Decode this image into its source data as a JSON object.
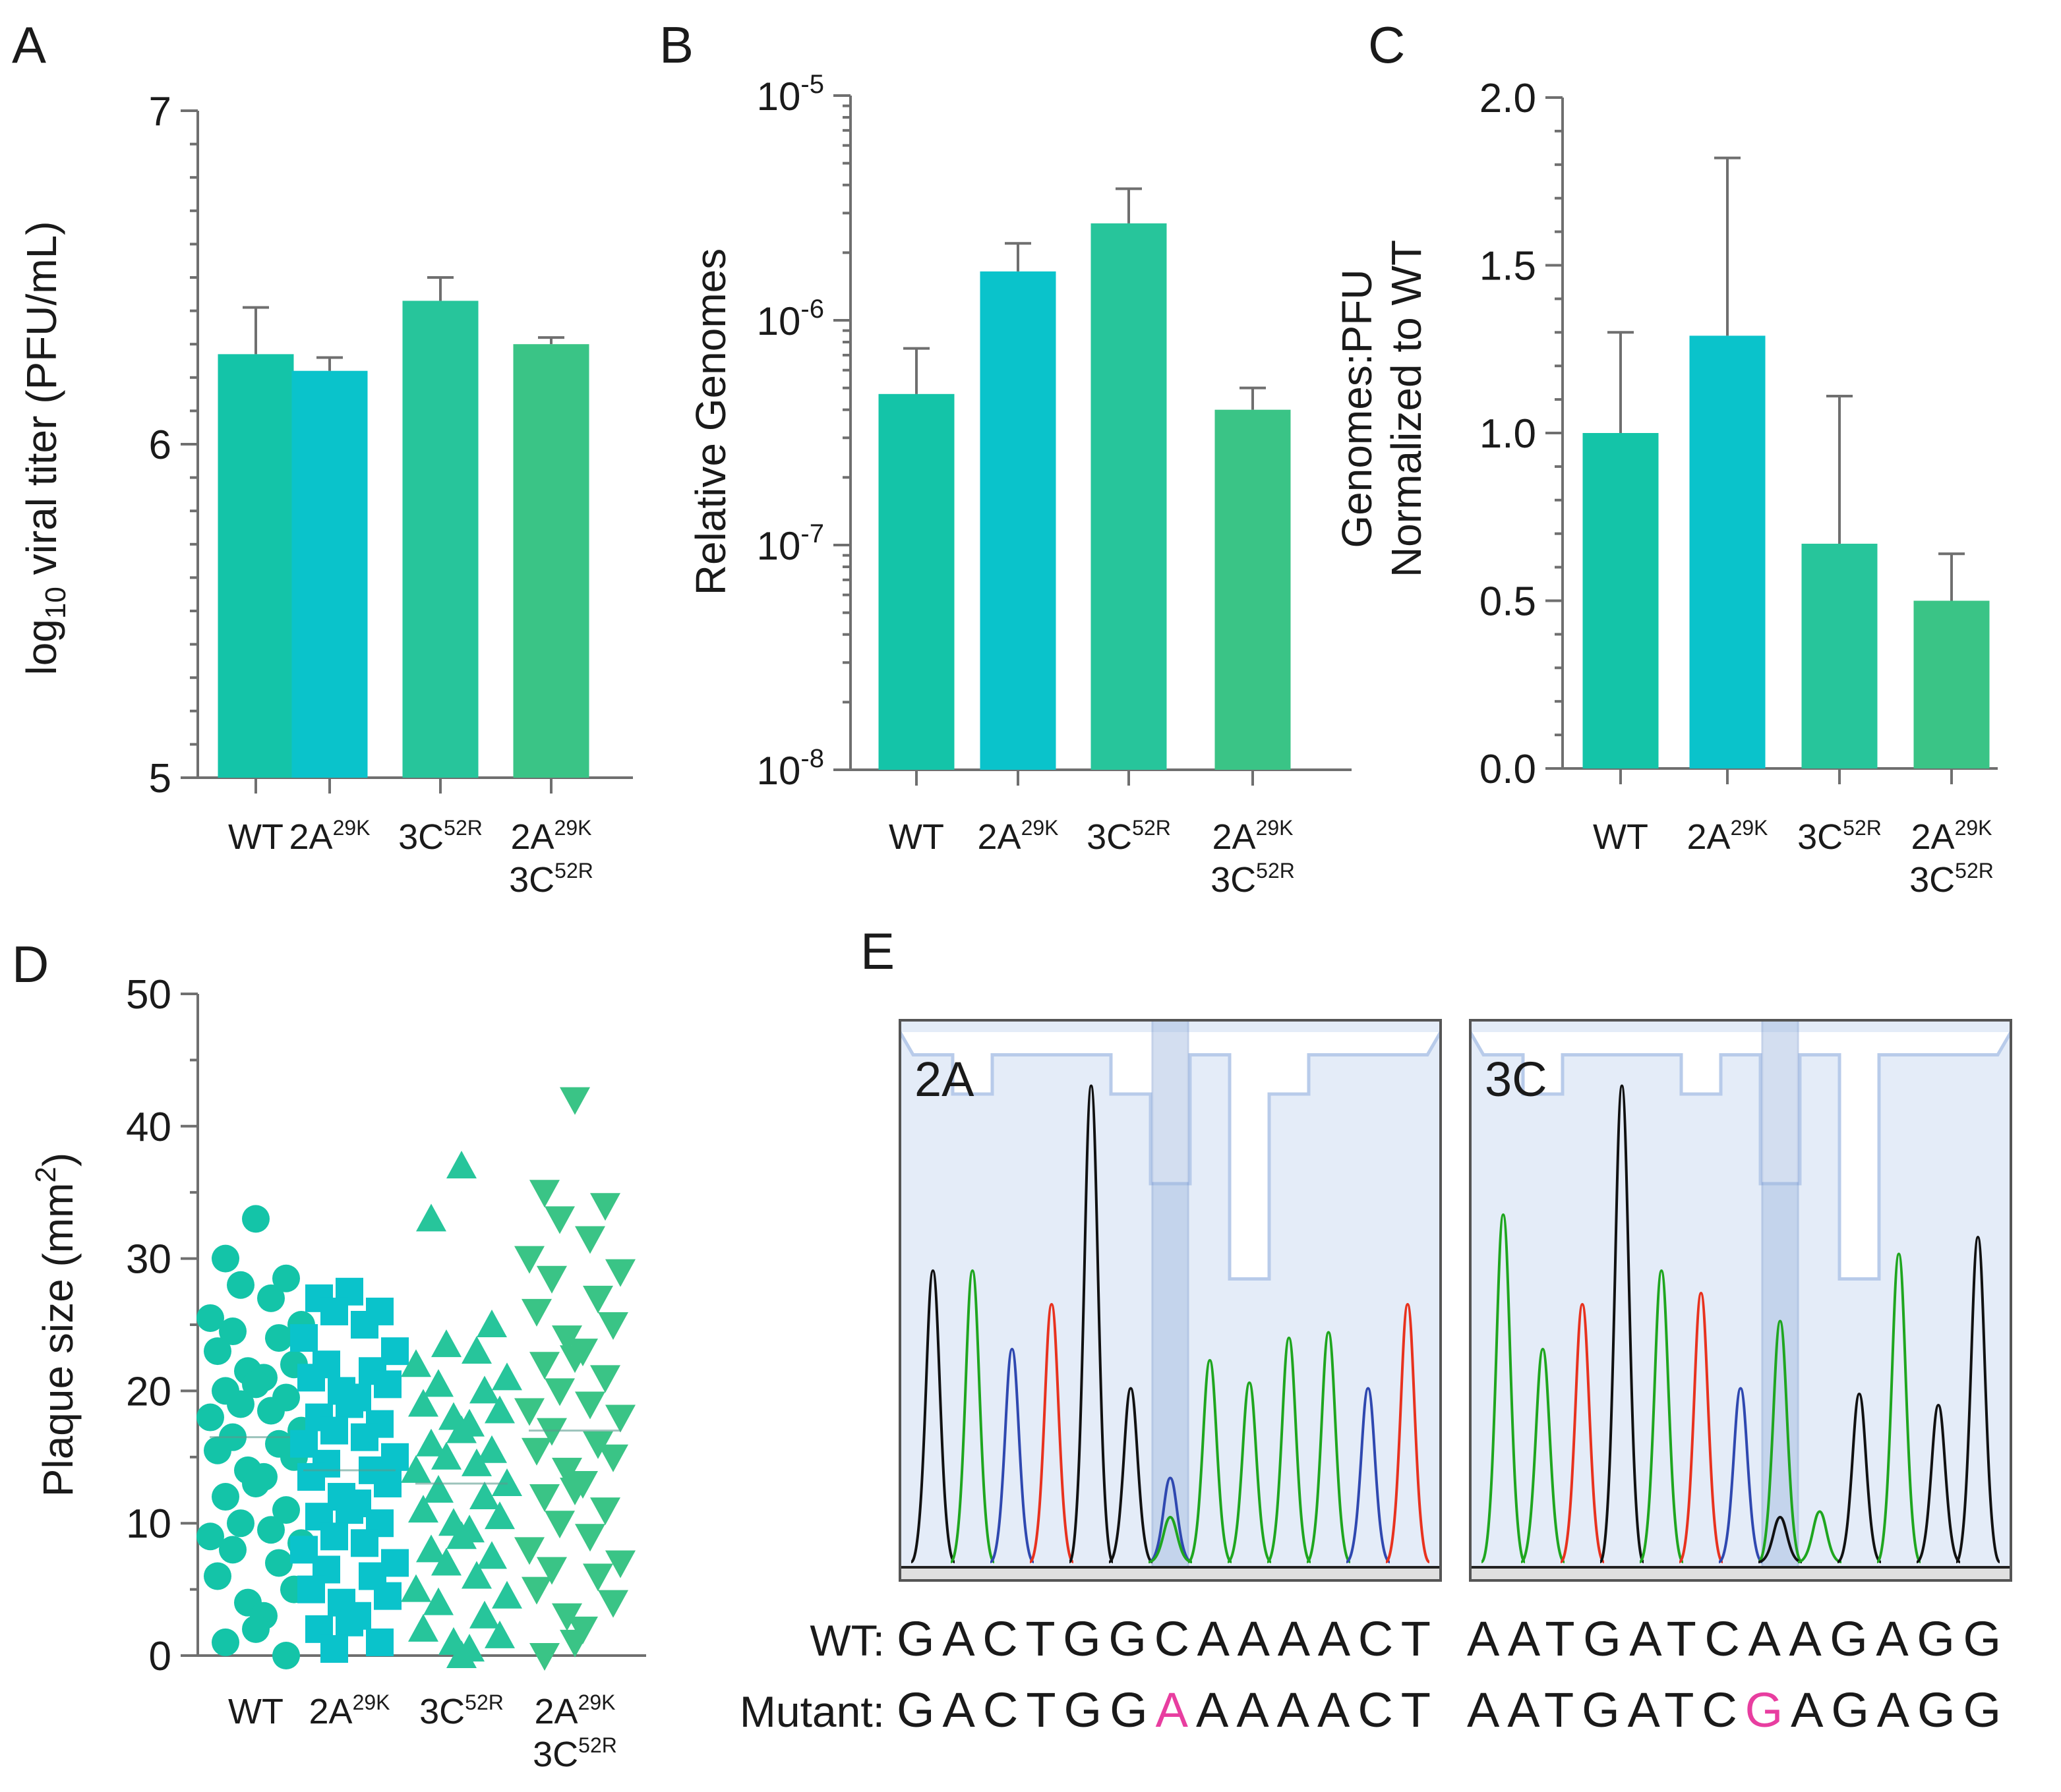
{
  "colors": {
    "WT": "#14c4a8",
    "2A29K": "#0ac3cb",
    "3C52R": "#27c59b",
    "double": "#3ac486",
    "trace_A": "#1fa61f",
    "trace_C": "#2f48b0",
    "trace_G": "#111111",
    "trace_T": "#e8321e",
    "mutation": "#e83ea0"
  },
  "categories": [
    {
      "base": "WT",
      "sup": "",
      "line2": "",
      "line2sup": ""
    },
    {
      "base": "2A",
      "sup": "29K",
      "line2": "",
      "line2sup": ""
    },
    {
      "base": "3C",
      "sup": "52R",
      "line2": "",
      "line2sup": ""
    },
    {
      "base": "2A",
      "sup": "29K",
      "line2": "3C",
      "line2sup": "52R"
    }
  ],
  "chart_data": [
    {
      "panel": "A",
      "type": "bar",
      "categories": [
        "WT",
        "2A29K",
        "3C52R",
        "2A29K 3C52R"
      ],
      "values": [
        6.27,
        6.22,
        6.43,
        6.3
      ],
      "errors": [
        0.14,
        0.04,
        0.07,
        0.02
      ],
      "ylabel": {
        "pre": "log",
        "sub": "10",
        "post": " viral titer (PFU/mL)"
      },
      "ylim": [
        5,
        7
      ],
      "yticks": [
        "5",
        "6",
        "7"
      ],
      "yscale": "linear"
    },
    {
      "panel": "B",
      "type": "bar",
      "categories": [
        "WT",
        "2A29K",
        "3C52R",
        "2A29K 3C52R"
      ],
      "values": [
        4.7e-07,
        1.65e-06,
        2.7e-06,
        4e-07
      ],
      "errors": [
        2.8e-07,
        5.5e-07,
        1.15e-06,
        1e-07
      ],
      "ylabel": "Relative Genomes",
      "ylim": [
        1e-08,
        1e-05
      ],
      "yticks": [
        {
          "base": "10",
          "exp": "-8"
        },
        {
          "base": "10",
          "exp": "-7"
        },
        {
          "base": "10",
          "exp": "-6"
        },
        {
          "base": "10",
          "exp": "-5"
        }
      ],
      "yscale": "log"
    },
    {
      "panel": "C",
      "type": "bar",
      "categories": [
        "WT",
        "2A29K",
        "3C52R",
        "2A29K 3C52R"
      ],
      "values": [
        1.0,
        1.29,
        0.67,
        0.5
      ],
      "errors": [
        0.3,
        0.53,
        0.44,
        0.14
      ],
      "ylabel": [
        "Genomes:PFU",
        "Normalized to WT"
      ],
      "ylim": [
        0,
        2.0
      ],
      "yticks": [
        "0.0",
        "0.5",
        "1.0",
        "1.5",
        "2.0"
      ],
      "yscale": "linear"
    },
    {
      "panel": "D",
      "type": "scatter",
      "categories": [
        "WT",
        "2A29K",
        "3C52R",
        "2A29K 3C52R"
      ],
      "markers": [
        "circle",
        "square",
        "triangle-up",
        "triangle-down"
      ],
      "series": [
        {
          "name": "WT",
          "values": [
            33,
            30,
            28.5,
            28,
            27,
            25.5,
            25,
            24.5,
            24,
            23,
            22,
            21.5,
            21,
            20.5,
            20,
            19.5,
            19,
            18.5,
            18,
            17,
            16.5,
            16,
            15.5,
            15,
            14,
            13.5,
            13,
            12,
            11,
            10,
            9.5,
            9,
            8.5,
            8,
            7,
            6,
            5,
            4,
            3,
            2,
            1,
            0
          ]
        },
        {
          "name": "2A29K",
          "values": [
            27.5,
            27,
            26,
            26,
            25,
            24,
            23,
            22,
            21.5,
            21,
            20.5,
            20,
            19.5,
            19,
            18,
            17.5,
            17,
            16.5,
            16,
            15,
            14.5,
            14,
            13.5,
            13,
            12,
            11.5,
            11,
            10.5,
            10,
            9,
            8.5,
            8,
            7,
            6.5,
            6,
            5,
            4.5,
            4,
            3,
            2.5,
            2,
            1,
            0.5
          ]
        },
        {
          "name": "3C52R",
          "values": [
            37,
            33,
            25,
            23.5,
            23,
            22,
            21,
            20.5,
            20,
            19,
            18.5,
            18,
            17.5,
            17,
            16,
            15.5,
            15,
            14.5,
            14,
            13,
            12.5,
            12,
            11,
            10.5,
            10,
            9.5,
            9,
            8,
            7.5,
            7,
            6,
            5,
            4.5,
            4,
            3,
            2,
            1.5,
            1,
            0.5,
            0
          ]
        },
        {
          "name": "2A29K 3C52R",
          "values": [
            42,
            35,
            34,
            33,
            31.5,
            30,
            29,
            28.5,
            27,
            26,
            25,
            24,
            23,
            22.5,
            22,
            21,
            20,
            19,
            18.5,
            18,
            17,
            16,
            15.5,
            15,
            14,
            13,
            12.5,
            12,
            11,
            10,
            9,
            8,
            7,
            6.5,
            6,
            5,
            4,
            3,
            2,
            1,
            0
          ]
        }
      ],
      "ylabel": {
        "text": "Plaque size (mm",
        "sup": "2",
        "close": ")"
      },
      "ylim": [
        0,
        50
      ],
      "yticks": [
        "0",
        "10",
        "20",
        "30",
        "40",
        "50"
      ]
    },
    {
      "panel": "E",
      "type": "chromatogram",
      "rows": [
        "WT:",
        "Mutant:"
      ],
      "plots": [
        {
          "label": "2A",
          "wt": "GACTGGCAAAACT",
          "mutant": "GACTGGAAAAACT",
          "mutation_index": 6
        },
        {
          "label": "3C",
          "wt": "AATGATCAAGAGG",
          "mutant": "AATGATCGAGAGG",
          "mutation_index": 7
        }
      ]
    }
  ],
  "panel_labels": [
    "A",
    "B",
    "C",
    "D",
    "E"
  ]
}
